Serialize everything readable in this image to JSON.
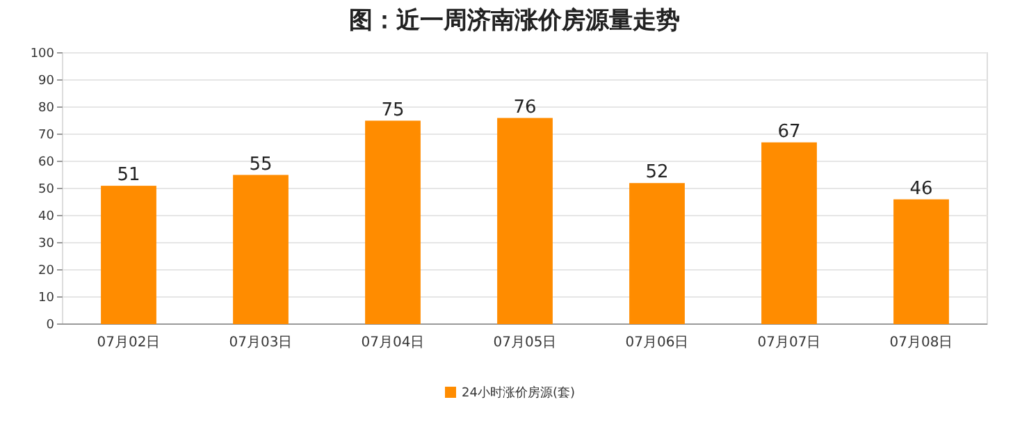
{
  "chart_data": {
    "type": "bar",
    "title": "图：近一周济南涨价房源量走势",
    "categories": [
      "07月02日",
      "07月03日",
      "07月04日",
      "07月05日",
      "07月06日",
      "07月07日",
      "07月08日"
    ],
    "series": [
      {
        "name": "24小时涨价房源(套)",
        "color": "#ff8c00",
        "values": [
          51,
          55,
          75,
          76,
          52,
          67,
          46
        ]
      }
    ],
    "ylim": [
      0,
      100
    ],
    "yticks": [
      0,
      10,
      20,
      30,
      40,
      50,
      60,
      70,
      80,
      90,
      100
    ],
    "grid": "y",
    "legend": "bottom",
    "data_labels": true
  }
}
